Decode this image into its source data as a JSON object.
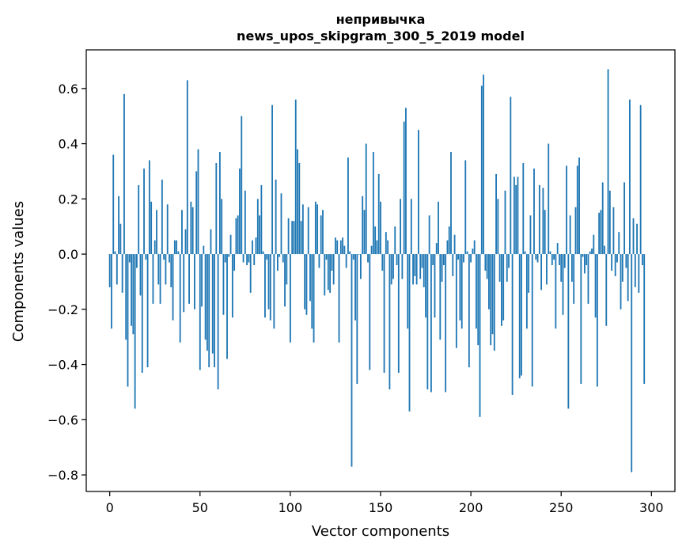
{
  "chart_data": {
    "type": "bar",
    "title": "непривычка",
    "subtitle": "news_upos_skipgram_300_5_2019 model",
    "xlabel": "Vector components",
    "ylabel": "Components values",
    "xlim": [
      -13,
      313
    ],
    "ylim": [
      -0.86,
      0.74
    ],
    "xticks": [
      0,
      50,
      100,
      150,
      200,
      250,
      300
    ],
    "yticks": [
      -0.8,
      -0.6,
      -0.4,
      -0.2,
      0.0,
      0.2,
      0.4,
      0.6
    ],
    "ytick_labels": [
      "−0.8",
      "−0.6",
      "−0.4",
      "−0.2",
      "0.0",
      "0.2",
      "0.4",
      "0.6"
    ],
    "bar_color": "#1f77b4",
    "grid": false,
    "values": [
      -0.12,
      -0.27,
      0.36,
      0.01,
      -0.11,
      0.21,
      0.11,
      -0.14,
      0.58,
      -0.31,
      -0.48,
      -0.03,
      -0.26,
      -0.29,
      -0.56,
      -0.05,
      0.25,
      -0.15,
      -0.43,
      0.31,
      -0.02,
      -0.41,
      0.34,
      0.19,
      -0.18,
      0.05,
      0.16,
      -0.11,
      -0.18,
      0.27,
      -0.02,
      -0.11,
      0.18,
      -0.03,
      -0.12,
      -0.24,
      0.05,
      0.05,
      0.01,
      -0.32,
      0.16,
      -0.21,
      0.09,
      0.63,
      -0.18,
      0.19,
      0.17,
      -0.2,
      0.3,
      0.38,
      -0.42,
      -0.19,
      0.03,
      -0.31,
      -0.35,
      -0.41,
      0.09,
      -0.36,
      -0.41,
      0.33,
      -0.49,
      0.37,
      0.2,
      -0.22,
      -0.03,
      -0.38,
      -0.01,
      0.07,
      -0.23,
      -0.06,
      0.13,
      0.14,
      0.31,
      0.5,
      -0.03,
      0.23,
      -0.04,
      -0.03,
      -0.14,
      0.05,
      -0.04,
      0.06,
      0.2,
      0.14,
      0.25,
      0.01,
      -0.23,
      -0.02,
      -0.2,
      -0.24,
      0.54,
      -0.27,
      0.27,
      -0.06,
      -0.01,
      0.22,
      -0.03,
      -0.19,
      -0.11,
      0.13,
      -0.32,
      0.12,
      0.12,
      0.56,
      0.38,
      0.33,
      0.12,
      0.18,
      -0.2,
      -0.22,
      0.17,
      -0.17,
      -0.27,
      -0.32,
      0.19,
      0.18,
      -0.05,
      0.14,
      0.16,
      -0.15,
      -0.02,
      -0.13,
      -0.14,
      -0.06,
      -0.11,
      0.06,
      0.05,
      -0.32,
      0.05,
      0.06,
      0.03,
      -0.05,
      0.35,
      0.01,
      -0.77,
      -0.02,
      -0.24,
      -0.47,
      0.0,
      -0.09,
      0.21,
      0.16,
      0.4,
      -0.03,
      -0.42,
      0.03,
      0.37,
      0.1,
      0.05,
      0.29,
      0.19,
      -0.06,
      -0.43,
      0.08,
      0.05,
      -0.49,
      -0.11,
      -0.09,
      0.1,
      -0.04,
      -0.43,
      0.2,
      -0.09,
      0.48,
      0.53,
      -0.27,
      -0.57,
      0.2,
      -0.11,
      -0.08,
      -0.11,
      0.45,
      -0.09,
      -0.05,
      -0.12,
      -0.23,
      -0.49,
      0.14,
      -0.5,
      -0.04,
      -0.23,
      0.04,
      0.19,
      -0.31,
      -0.1,
      -0.04,
      -0.5,
      0.05,
      0.1,
      0.37,
      -0.08,
      0.07,
      -0.34,
      -0.02,
      -0.24,
      -0.27,
      -0.03,
      0.34,
      0.01,
      -0.41,
      -0.03,
      0.02,
      0.05,
      -0.27,
      -0.33,
      -0.59,
      0.61,
      0.65,
      -0.06,
      -0.09,
      -0.2,
      -0.33,
      -0.29,
      -0.35,
      0.29,
      0.2,
      -0.1,
      -0.26,
      -0.24,
      0.23,
      -0.1,
      -0.05,
      0.57,
      -0.51,
      0.28,
      0.25,
      0.28,
      -0.45,
      -0.44,
      0.33,
      0.01,
      -0.27,
      -0.14,
      0.14,
      -0.48,
      0.31,
      -0.02,
      -0.03,
      0.25,
      -0.13,
      0.24,
      0.16,
      -0.11,
      0.4,
      0.01,
      -0.04,
      -0.02,
      -0.27,
      0.04,
      -0.04,
      -0.1,
      -0.22,
      -0.05,
      0.32,
      -0.56,
      0.14,
      -0.1,
      -0.18,
      0.17,
      0.32,
      0.35,
      -0.47,
      -0.01,
      -0.07,
      -0.04,
      -0.18,
      0.01,
      0.02,
      0.07,
      -0.23,
      -0.48,
      0.15,
      0.16,
      0.26,
      0.03,
      -0.26,
      0.67,
      0.23,
      -0.06,
      0.17,
      -0.08,
      -0.03,
      0.08,
      -0.2,
      -0.1,
      0.26,
      -0.05,
      -0.17,
      0.56,
      -0.79,
      0.13,
      -0.12,
      0.11,
      -0.14,
      0.54,
      -0.04,
      -0.47
    ]
  }
}
